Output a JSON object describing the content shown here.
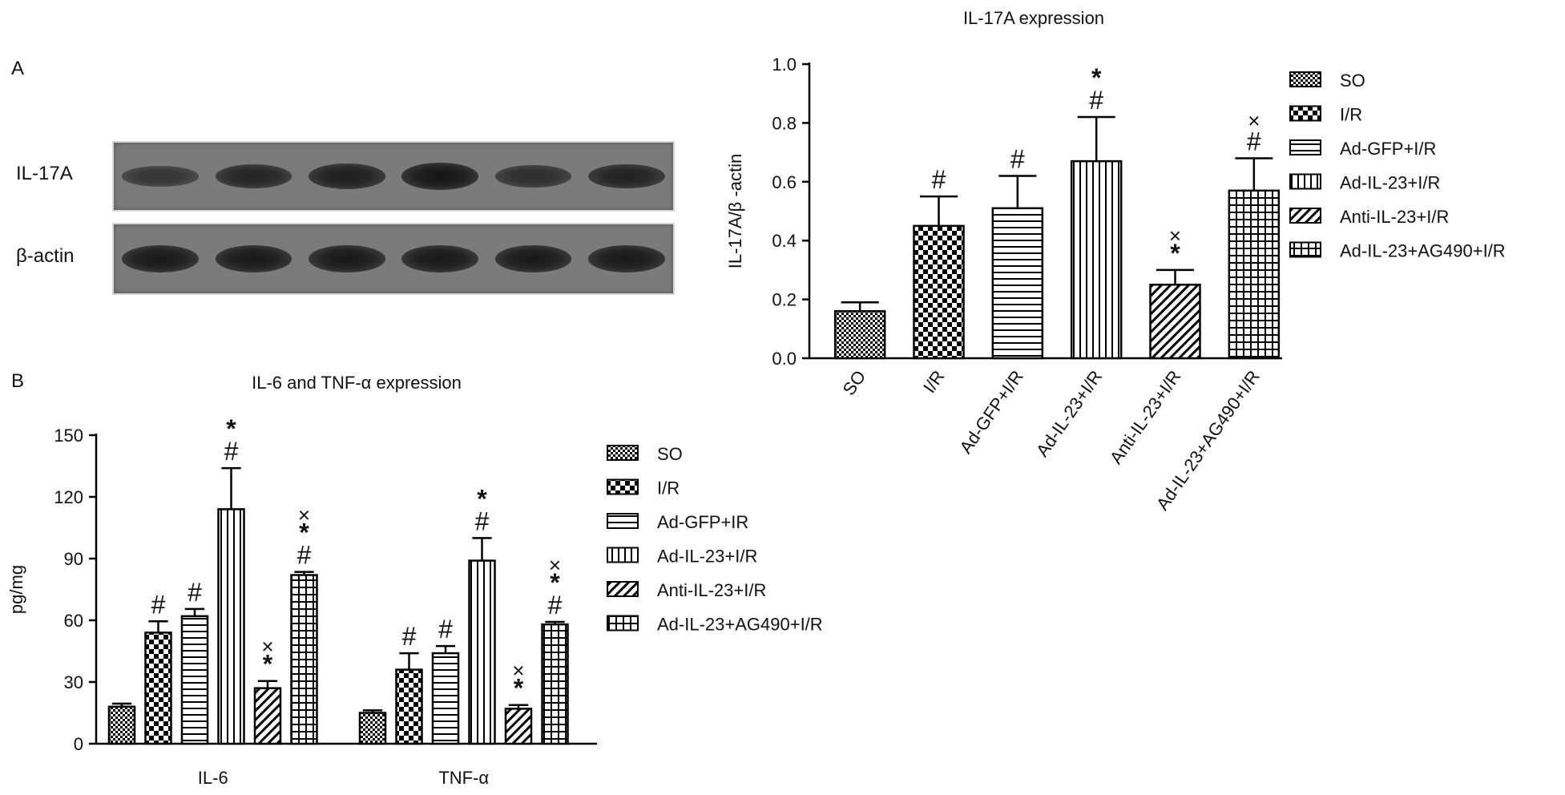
{
  "panels": {
    "a_label": "A",
    "b_label": "B"
  },
  "blot": {
    "row_labels": [
      "IL-17A",
      "β-actin"
    ],
    "lanes": 6,
    "il17a_intensity": [
      0.45,
      0.75,
      0.85,
      1.0,
      0.6,
      0.8
    ],
    "actin_intensity": [
      0.95,
      0.95,
      0.95,
      0.95,
      0.95,
      0.95
    ]
  },
  "legend_colors": {
    "bar_fill": "#ffffff",
    "stroke": "#000000"
  },
  "chart_data": [
    {
      "type": "bar",
      "title": "IL-17A expression",
      "xlabel": "",
      "ylabel": "IL-17A/β -actin",
      "ylim": [
        0,
        1.0
      ],
      "yticks": [
        "0.0",
        "0.2",
        "0.4",
        "0.6",
        "0.8",
        "1.0"
      ],
      "categories": [
        "SO",
        "I/R",
        "Ad-GFP+I/R",
        "Ad-IL-23+I/R",
        "Anti-IL-23+I/R",
        "Ad-IL-23+AG490+I/R"
      ],
      "values": [
        0.16,
        0.45,
        0.51,
        0.67,
        0.25,
        0.57
      ],
      "errors": [
        0.03,
        0.1,
        0.11,
        0.15,
        0.05,
        0.11
      ],
      "annotations": [
        [],
        [
          "#"
        ],
        [
          "#"
        ],
        [
          "#",
          "*"
        ],
        [
          "*",
          "×"
        ],
        [
          "#",
          "×"
        ]
      ],
      "legend": [
        "SO",
        "I/R",
        "Ad-GFP+I/R",
        "Ad-IL-23+I/R",
        "Anti-IL-23+I/R",
        "Ad-IL-23+AG490+I/R"
      ],
      "legend_placement": "right",
      "patterns": [
        "dense-check",
        "check",
        "hlines",
        "vlines",
        "diag",
        "grid"
      ]
    },
    {
      "type": "bar",
      "title": "IL-6 and TNF-α expression",
      "xlabel": "",
      "ylabel": "pg/mg",
      "ylim": [
        0,
        150
      ],
      "yticks": [
        "0",
        "30",
        "60",
        "90",
        "120",
        "150"
      ],
      "categories": [
        "IL-6",
        "TNF-α"
      ],
      "series": [
        {
          "name": "SO",
          "values": [
            18,
            15
          ],
          "errors": [
            1.5,
            1.2
          ],
          "annotations": [
            [],
            []
          ]
        },
        {
          "name": "I/R",
          "values": [
            54,
            36
          ],
          "errors": [
            5.5,
            8
          ],
          "annotations": [
            [
              "#"
            ],
            [
              "#"
            ]
          ]
        },
        {
          "name": "Ad-GFP+IR",
          "values": [
            62,
            44
          ],
          "errors": [
            3.5,
            3.5
          ],
          "annotations": [
            [
              "#"
            ],
            [
              "#"
            ]
          ]
        },
        {
          "name": "Ad-IL-23+I/R",
          "values": [
            114,
            89
          ],
          "errors": [
            20,
            11
          ],
          "annotations": [
            [
              "#",
              "*"
            ],
            [
              "#",
              "*"
            ]
          ]
        },
        {
          "name": "Anti-IL-23+I/R",
          "values": [
            27,
            17
          ],
          "errors": [
            3.5,
            1.8
          ],
          "annotations": [
            [
              "*",
              "×"
            ],
            [
              "*",
              "×"
            ]
          ]
        },
        {
          "name": "Ad-IL-23+AG490+I/R",
          "values": [
            82,
            58
          ],
          "errors": [
            1.5,
            1.2
          ],
          "annotations": [
            [
              "#",
              "*",
              "×"
            ],
            [
              "#",
              "*",
              "×"
            ]
          ]
        }
      ],
      "legend_placement": "right",
      "patterns": [
        "dense-check",
        "check",
        "hlines",
        "vlines",
        "diag",
        "grid"
      ]
    }
  ]
}
